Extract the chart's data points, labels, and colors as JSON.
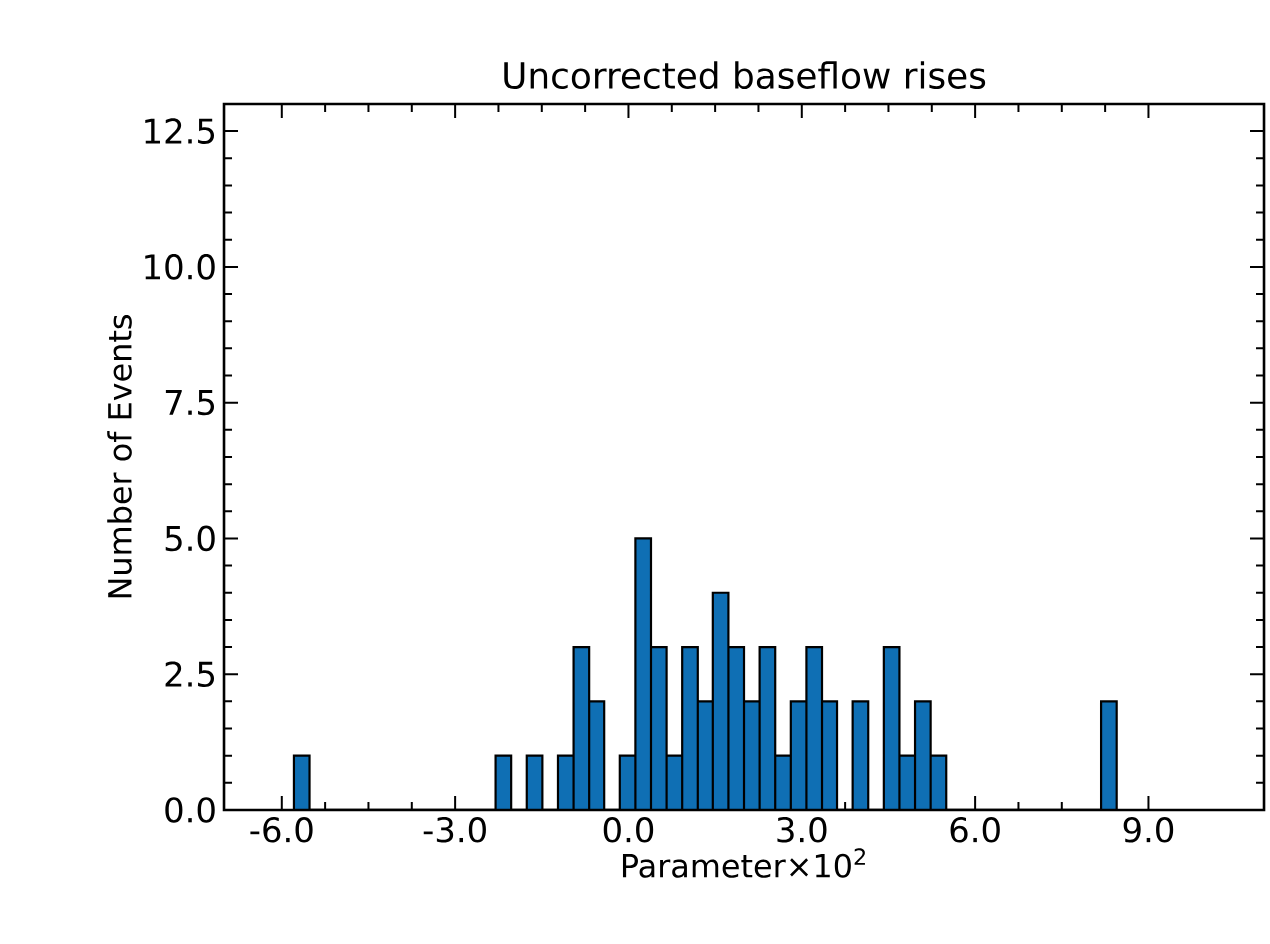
{
  "chart_data": {
    "type": "histogram",
    "title": "Uncorrected baseflow rises",
    "xlabel": "Parameter×10$^{2}$",
    "ylabel": "Number of Events",
    "bins": [
      -5.79,
      -5.52,
      -2.3,
      -2.03,
      -1.76,
      -1.49,
      -1.22,
      -0.95,
      -0.68,
      -0.42,
      -0.15,
      0.12,
      0.39,
      0.66,
      0.93,
      1.2,
      1.46,
      1.73,
      2.0,
      2.27,
      2.54,
      2.81,
      3.08,
      3.35,
      3.61,
      3.88,
      4.15,
      4.42,
      4.69,
      4.96,
      5.23,
      5.5,
      8.18,
      8.45
    ],
    "values": [
      1,
      0,
      1,
      0,
      1,
      0,
      1,
      3,
      2,
      0,
      1,
      5,
      3,
      1,
      3,
      2,
      4,
      3,
      2,
      3,
      1,
      2,
      3,
      2,
      0,
      2,
      0,
      3,
      1,
      2,
      1,
      0,
      2
    ],
    "color": "#0f6fb4",
    "xlim": [
      -7,
      11
    ],
    "ylim": [
      0,
      13
    ],
    "xticks": [
      {
        "value": -6,
        "label": "-6.0"
      },
      {
        "value": -3,
        "label": "-3.0"
      },
      {
        "value": 0,
        "label": "0.0"
      },
      {
        "value": 3,
        "label": "3.0"
      },
      {
        "value": 6,
        "label": "6.0"
      },
      {
        "value": 9,
        "label": "9.0"
      }
    ],
    "yticks": [
      {
        "value": 0,
        "label": "0.0"
      },
      {
        "value": 2.5,
        "label": "2.5"
      },
      {
        "value": 5,
        "label": "5.0"
      },
      {
        "value": 7.5,
        "label": "7.5"
      },
      {
        "value": 10,
        "label": "10.0"
      },
      {
        "value": 12.5,
        "label": "12.5"
      }
    ],
    "grid": false
  }
}
